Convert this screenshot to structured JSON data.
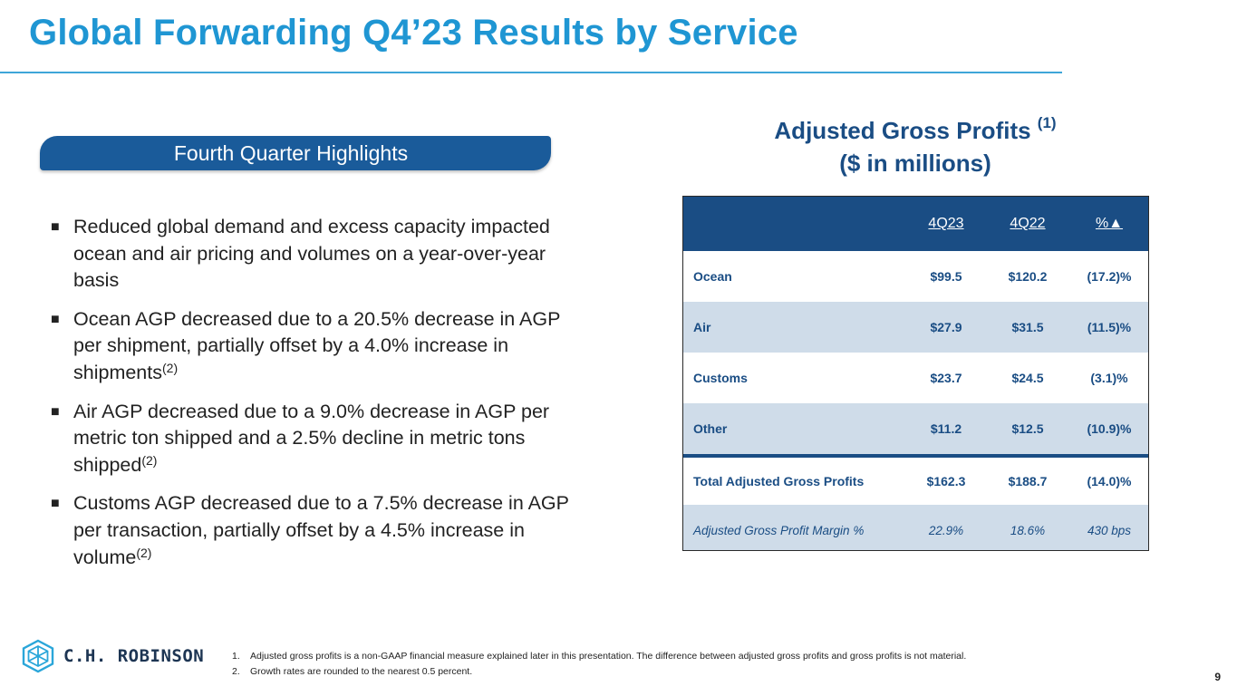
{
  "slide": {
    "title": "Global Forwarding Q4’23 Results by Service",
    "page_number": "9"
  },
  "highlights": {
    "banner": "Fourth Quarter Highlights",
    "bullet_marker": "■",
    "items": [
      {
        "text": "Reduced global demand and excess capacity impacted ocean and air pricing and volumes on a year-over-year basis",
        "note": ""
      },
      {
        "text": "Ocean AGP decreased due to a 20.5% decrease in AGP per shipment, partially offset by a 4.0% increase in shipments",
        "note": "(2)"
      },
      {
        "text": "Air AGP decreased due to a 9.0% decrease in AGP per metric ton shipped and a 2.5% decline in metric tons shipped",
        "note": "(2)"
      },
      {
        "text": "Customs AGP decreased due to a 7.5% decrease in AGP per transaction, partially offset by a 4.5% increase in volume",
        "note": "(2)"
      }
    ]
  },
  "agp": {
    "title_line1": "Adjusted Gross Profits",
    "title_note": "(1)",
    "title_line2": "($ in millions)",
    "headers": [
      "",
      "4Q23",
      "4Q22",
      "%▲"
    ],
    "rows": [
      [
        "Ocean",
        "$99.5",
        "$120.2",
        "(17.2)%"
      ],
      [
        "Air",
        "$27.9",
        "$31.5",
        "(11.5)%"
      ],
      [
        "Customs",
        "$23.7",
        "$24.5",
        "(3.1)%"
      ],
      [
        "Other",
        "$11.2",
        "$12.5",
        "(10.9)%"
      ],
      [
        "Total Adjusted Gross Profits",
        "$162.3",
        "$188.7",
        "(14.0)%"
      ],
      [
        "Adjusted Gross Profit Margin %",
        "22.9%",
        "18.6%",
        "430 bps"
      ]
    ]
  },
  "footer": {
    "logo_text": "C.H. ROBINSON",
    "footnotes": [
      {
        "num": "1.",
        "text": "Adjusted gross profits is a non-GAAP financial measure explained later in this presentation. The difference between adjusted gross profits and gross profits is not material."
      },
      {
        "num": "2.",
        "text": "Growth rates are rounded to the nearest 0.5 percent."
      }
    ]
  },
  "colors": {
    "title": "#1f96d3",
    "navy": "#1a4d84",
    "row_alt": "#cfdce9",
    "banner": "#1a5b9a"
  }
}
